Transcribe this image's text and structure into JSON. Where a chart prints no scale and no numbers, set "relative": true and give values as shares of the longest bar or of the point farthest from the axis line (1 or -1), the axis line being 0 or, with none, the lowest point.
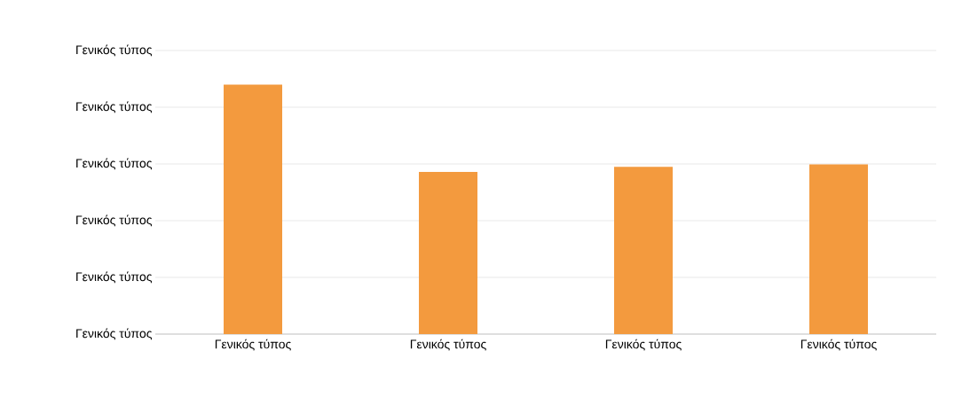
{
  "chart_data": {
    "type": "bar",
    "relative": true,
    "color": "#f39a3e",
    "grid": true,
    "categories": [
      "Γενικός τύπος",
      "Γενικός τύπος",
      "Γενικός τύπος",
      "Γενικός τύπος"
    ],
    "values": [
      1,
      0.65,
      0.67,
      0.68
    ],
    "annotations": [
      "Γενικός τύπος",
      "Γενικός τύπος",
      "Γενικός τύπος",
      "Γενικός τύπος",
      "Γενικός τύπος",
      "Γενικός τύπος"
    ]
  }
}
